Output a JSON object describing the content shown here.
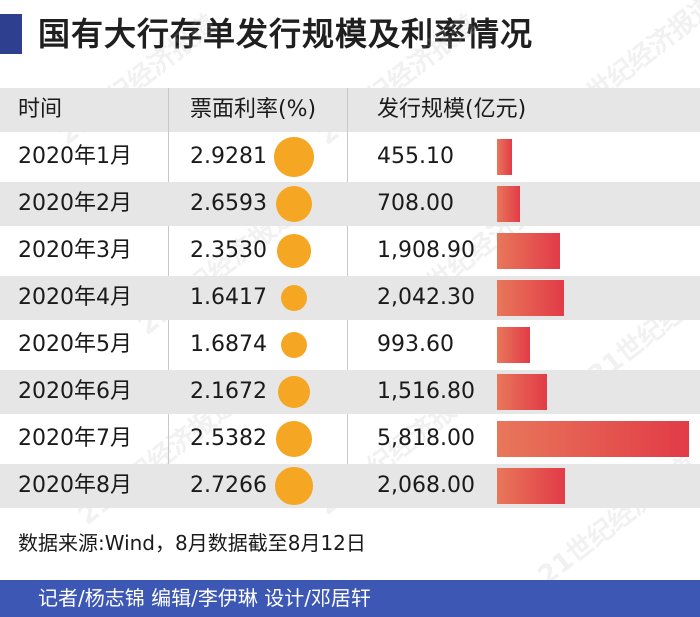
{
  "title": "国有大行存单发行规模及利率情况",
  "headers": {
    "month": "时间",
    "rate": "票面利率(%)",
    "size": "发行规模(亿元)"
  },
  "source": "数据来源:Wind，8月数据截至8月12日",
  "credits": "记者/杨志锦  编辑/李伊琳  设计/邓居轩",
  "watermark": "21世纪经济报道",
  "colors": {
    "accent": "#2f3f8f",
    "footer": "#3d57b5",
    "bubble": "#f5a623",
    "bar_start": "#e8775a",
    "bar_end": "#e23b47",
    "row_shade": "#e6e6e6"
  },
  "chart_data": {
    "type": "table",
    "columns": [
      "时间",
      "票面利率(%)",
      "发行规模(亿元)"
    ],
    "rows": [
      {
        "month": "2020年1月",
        "rate": 2.9281,
        "rate_label": "2.9281",
        "size": 455.1,
        "size_label": "455.10"
      },
      {
        "month": "2020年2月",
        "rate": 2.6593,
        "rate_label": "2.6593",
        "size": 708.0,
        "size_label": "708.00"
      },
      {
        "month": "2020年3月",
        "rate": 2.353,
        "rate_label": "2.3530",
        "size": 1908.9,
        "size_label": "1,908.90"
      },
      {
        "month": "2020年4月",
        "rate": 1.6417,
        "rate_label": "1.6417",
        "size": 2042.3,
        "size_label": "2,042.30"
      },
      {
        "month": "2020年5月",
        "rate": 1.6874,
        "rate_label": "1.6874",
        "size": 993.6,
        "size_label": "993.60"
      },
      {
        "month": "2020年6月",
        "rate": 2.1672,
        "rate_label": "2.1672",
        "size": 1516.8,
        "size_label": "1,516.80"
      },
      {
        "month": "2020年7月",
        "rate": 2.5382,
        "rate_label": "2.5382",
        "size": 5818.0,
        "size_label": "5,818.00"
      },
      {
        "month": "2020年8月",
        "rate": 2.7266,
        "rate_label": "2.7266",
        "size": 2068.0,
        "size_label": "2,068.00"
      }
    ],
    "rate_encoding": "bubble",
    "size_encoding": "bar"
  }
}
